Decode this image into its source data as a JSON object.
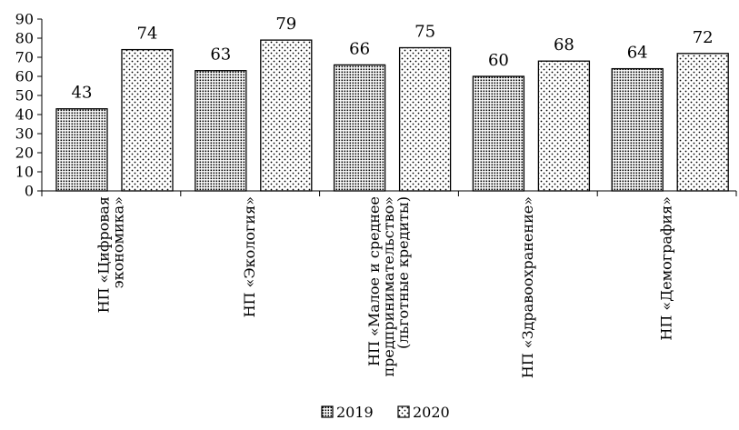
{
  "chart_data": {
    "type": "bar",
    "categories": [
      [
        "НП «Цифровая",
        "экономика»"
      ],
      [
        "НП «Экология»"
      ],
      [
        "НП «Малое и среднее",
        "предпринимательство»",
        "(льготные кредиты)"
      ],
      [
        "НП «Здравоохранение»"
      ],
      [
        "НП «Демография»"
      ]
    ],
    "series": [
      {
        "name": "2019",
        "values": [
          43,
          63,
          66,
          60,
          64
        ],
        "pattern": "dense-dots"
      },
      {
        "name": "2020",
        "values": [
          74,
          79,
          75,
          68,
          72
        ],
        "pattern": "sparse-dots"
      }
    ],
    "yticks": [
      "0",
      "10",
      "20",
      "30",
      "40",
      "50",
      "60",
      "70",
      "80",
      "90"
    ],
    "ylim": [
      0,
      90
    ],
    "legend_position": "bottom-center",
    "grid": false,
    "colors": {
      "bar_fill": "#ffffff",
      "dots": "#000000",
      "stroke": "#000000"
    }
  }
}
